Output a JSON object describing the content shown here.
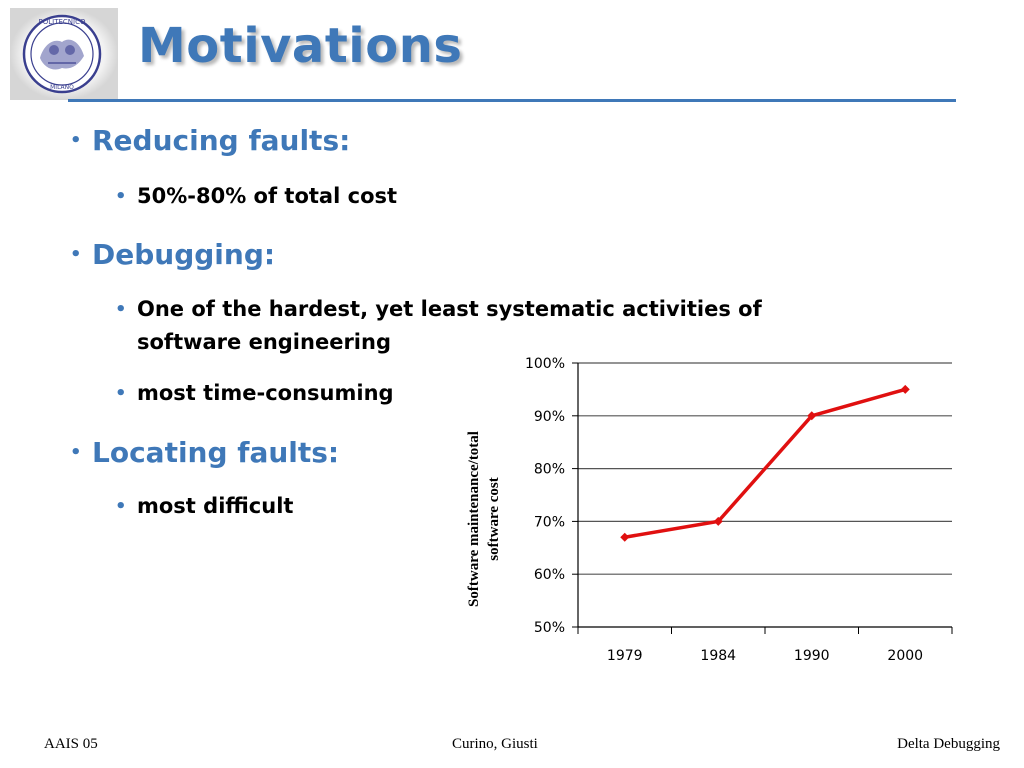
{
  "slide": {
    "title": "Motivations",
    "bullets": [
      {
        "label": "Reducing faults:",
        "subs": [
          "50%-80% of total cost"
        ]
      },
      {
        "label": "Debugging:",
        "subs": [
          "One of the hardest, yet least systematic activities of",
          "software engineering",
          "most time-consuming"
        ]
      },
      {
        "label": "Locating faults:",
        "subs": [
          "most difficult"
        ]
      }
    ]
  },
  "logo": {
    "icon": "politecnico-milano-seal-icon",
    "text_top": "POLITECNICO",
    "text_bottom": "MILANO",
    "color": "#3a3f8f"
  },
  "chart_data": {
    "type": "line",
    "categories": [
      "1979",
      "1984",
      "1990",
      "2000"
    ],
    "values": [
      0.67,
      0.7,
      0.9,
      0.95
    ],
    "ylabel_line1": "Software maintenance/total",
    "ylabel_line2": "software cost",
    "ylim": [
      0.5,
      1.0
    ],
    "yticks": [
      "50%",
      "60%",
      "70%",
      "80%",
      "90%",
      "100%"
    ],
    "grid": true,
    "line_color": "#e01010",
    "grid_color": "#555555"
  },
  "footer": {
    "left": "AAIS 05",
    "center": "Curino, Giusti",
    "right": "Delta Debugging"
  },
  "colors": {
    "accent": "#3f78b8"
  }
}
